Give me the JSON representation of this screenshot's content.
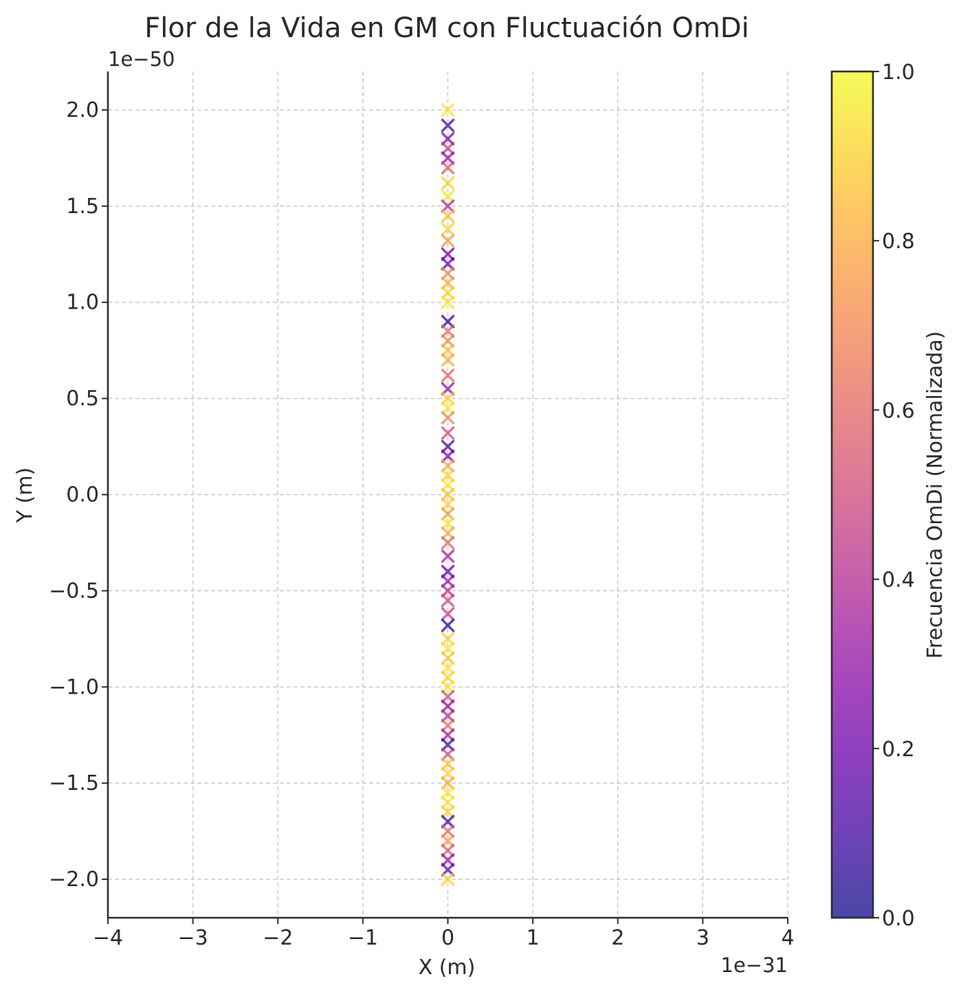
{
  "chart_data": {
    "type": "scatter",
    "title": "Flor de la Vida en GM con Fluctuación OmDi",
    "xlabel": "X (m)",
    "ylabel": "Y (m)",
    "x_offset_text": "1e−31",
    "y_offset_text": "1e−50",
    "xlim": [
      -4,
      4
    ],
    "ylim": [
      -2.2,
      2.2
    ],
    "xticks": [
      -4,
      -3,
      -2,
      -1,
      0,
      1,
      2,
      3,
      4
    ],
    "xtick_labels": [
      "−4",
      "−3",
      "−2",
      "−1",
      "0",
      "1",
      "2",
      "3",
      "4"
    ],
    "yticks": [
      -2.0,
      -1.5,
      -1.0,
      -0.5,
      0.0,
      0.5,
      1.0,
      1.5,
      2.0
    ],
    "ytick_labels": [
      "−2.0",
      "−1.5",
      "−1.0",
      "−0.5",
      "0.0",
      "0.5",
      "1.0",
      "1.5",
      "2.0"
    ],
    "grid": true,
    "marker": "x",
    "colormap": "plasma",
    "colorbar": {
      "label": "Frecuencia OmDi (Normalizada)",
      "range": [
        0,
        1
      ],
      "ticks": [
        0.0,
        0.2,
        0.4,
        0.6,
        0.8,
        1.0
      ],
      "tick_labels": [
        "0.0",
        "0.2",
        "0.4",
        "0.6",
        "0.8",
        "1.0"
      ]
    },
    "series": [
      {
        "name": "OmDi",
        "x": 0,
        "y": [
          2.0,
          1.92,
          1.85,
          1.8,
          1.75,
          1.7,
          1.62,
          1.55,
          1.5,
          1.45,
          1.38,
          1.32,
          1.25,
          1.2,
          1.15,
          1.1,
          1.05,
          1.0,
          0.9,
          0.85,
          0.8,
          0.75,
          0.7,
          0.62,
          0.55,
          0.5,
          0.45,
          0.4,
          0.32,
          0.25,
          0.2,
          0.15,
          0.1,
          0.05,
          0.0,
          -0.05,
          -0.1,
          -0.15,
          -0.2,
          -0.25,
          -0.32,
          -0.4,
          -0.45,
          -0.5,
          -0.55,
          -0.62,
          -0.68,
          -0.75,
          -0.8,
          -0.85,
          -0.9,
          -0.95,
          -1.0,
          -1.05,
          -1.1,
          -1.15,
          -1.2,
          -1.25,
          -1.3,
          -1.35,
          -1.4,
          -1.45,
          -1.5,
          -1.55,
          -1.6,
          -1.65,
          -1.7,
          -1.75,
          -1.8,
          -1.85,
          -1.9,
          -1.95,
          -2.0
        ],
        "c": [
          0.95,
          0.1,
          0.25,
          0.45,
          0.3,
          0.55,
          0.9,
          0.95,
          0.4,
          0.85,
          0.9,
          0.75,
          0.2,
          0.15,
          0.7,
          0.8,
          0.9,
          0.95,
          0.05,
          0.6,
          0.7,
          0.85,
          0.8,
          0.6,
          0.3,
          0.9,
          0.95,
          0.7,
          0.5,
          0.1,
          0.25,
          0.8,
          0.9,
          0.95,
          0.85,
          0.9,
          0.75,
          0.95,
          0.8,
          0.6,
          0.35,
          0.15,
          0.3,
          0.4,
          0.5,
          0.45,
          0.05,
          0.9,
          0.95,
          0.85,
          0.95,
          0.9,
          0.95,
          0.5,
          0.3,
          0.4,
          0.6,
          0.35,
          0.1,
          0.5,
          0.85,
          0.9,
          0.8,
          0.95,
          0.95,
          0.9,
          0.1,
          0.6,
          0.75,
          0.55,
          0.3,
          0.15,
          0.9
        ]
      }
    ]
  }
}
